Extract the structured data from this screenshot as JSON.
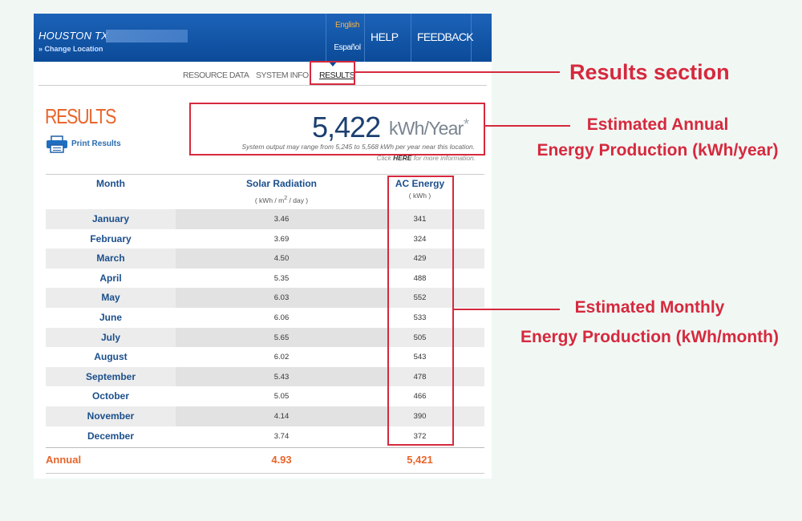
{
  "header": {
    "location": "HOUSTON TX",
    "change_location": "» Change Location",
    "lang_english": "English",
    "lang_spanish": "Español",
    "help": "HELP",
    "feedback": "FEEDBACK"
  },
  "tabs": [
    {
      "label": "RESOURCE DATA"
    },
    {
      "label": "SYSTEM INFO"
    },
    {
      "label": "RESULTS"
    }
  ],
  "results": {
    "title": "RESULTS",
    "print_label": "Print Results",
    "annual_value": "5,422",
    "annual_unit": "kWh/Year",
    "annual_star": "*",
    "range_note": "System output may range from 5,245 to 5,568 kWh per year near this location.",
    "more_info_prefix": "Click",
    "more_info_link": "HERE",
    "more_info_suffix": "for more information."
  },
  "table": {
    "col_month": "Month",
    "col_solar": "Solar Radiation",
    "col_solar_unit_pre": "( kWh / m",
    "col_solar_unit_sup": "2",
    "col_solar_unit_post": " / day )",
    "col_ac": "AC Energy",
    "col_ac_unit": "( kWh )",
    "rows": [
      {
        "month": "January",
        "solar": "3.46",
        "ac": "341"
      },
      {
        "month": "February",
        "solar": "3.69",
        "ac": "324"
      },
      {
        "month": "March",
        "solar": "4.50",
        "ac": "429"
      },
      {
        "month": "April",
        "solar": "5.35",
        "ac": "488"
      },
      {
        "month": "May",
        "solar": "6.03",
        "ac": "552"
      },
      {
        "month": "June",
        "solar": "6.06",
        "ac": "533"
      },
      {
        "month": "July",
        "solar": "5.65",
        "ac": "505"
      },
      {
        "month": "August",
        "solar": "6.02",
        "ac": "543"
      },
      {
        "month": "September",
        "solar": "5.43",
        "ac": "478"
      },
      {
        "month": "October",
        "solar": "5.05",
        "ac": "466"
      },
      {
        "month": "November",
        "solar": "4.14",
        "ac": "390"
      },
      {
        "month": "December",
        "solar": "3.74",
        "ac": "372"
      }
    ],
    "total_label": "Annual",
    "total_solar": "4.93",
    "total_ac": "5,421"
  },
  "annotations": {
    "results_section": "Results section",
    "annual_line1": "Estimated Annual",
    "annual_line2": "Energy Production (kWh/year)",
    "monthly_line1": "Estimated Monthly",
    "monthly_line2": "Energy Production (kWh/month)"
  },
  "colors": {
    "header_blue": "#0b4a98",
    "accent_orange": "#e8652b",
    "annotation_red": "#d6293e"
  }
}
